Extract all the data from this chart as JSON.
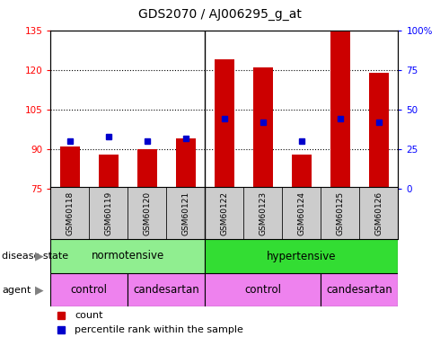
{
  "title": "GDS2070 / AJ006295_g_at",
  "samples": [
    "GSM60118",
    "GSM60119",
    "GSM60120",
    "GSM60121",
    "GSM60122",
    "GSM60123",
    "GSM60124",
    "GSM60125",
    "GSM60126"
  ],
  "count_values": [
    91,
    88,
    90,
    94,
    124,
    121,
    88,
    135,
    119
  ],
  "percentile_values": [
    30,
    33,
    30,
    32,
    44,
    42,
    30,
    44,
    42
  ],
  "ylim_left": [
    75,
    135
  ],
  "ylim_right": [
    0,
    100
  ],
  "yticks_left": [
    75,
    90,
    105,
    120,
    135
  ],
  "yticks_right": [
    0,
    25,
    50,
    75,
    100
  ],
  "bar_color": "#cc0000",
  "dot_color": "#0000cc",
  "bar_width": 0.5,
  "grid_lines": [
    90,
    105,
    120
  ],
  "color_green_light": "#90EE90",
  "color_green": "#33DD33",
  "color_pink": "#EE82EE",
  "color_gray": "#CCCCCC",
  "disease_state_label": "disease state",
  "agent_label": "agent",
  "legend_count": "count",
  "legend_percentile": "percentile rank within the sample",
  "norm_label": "normotensive",
  "hyper_label": "hypertensive",
  "control_label": "control",
  "candesartan_label": "candesartan"
}
